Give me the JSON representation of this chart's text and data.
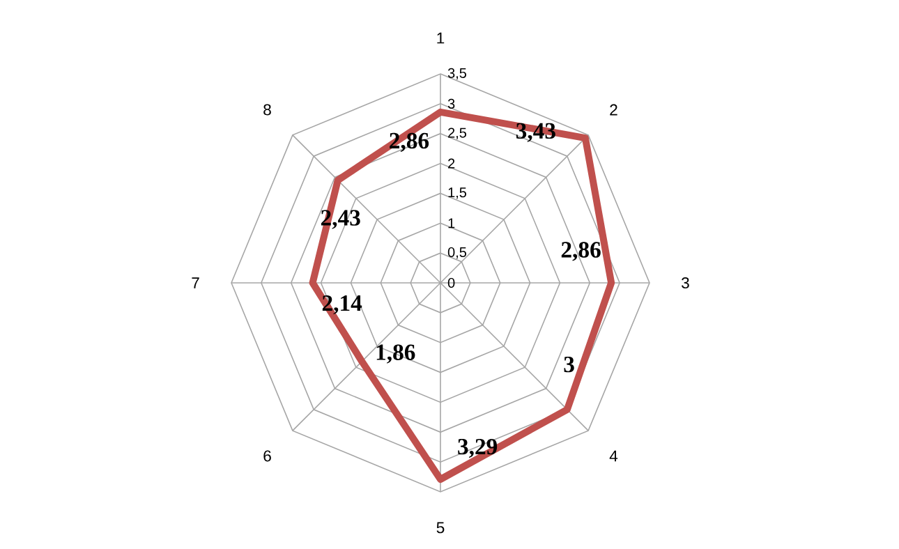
{
  "chart_data": {
    "type": "radar",
    "categories": [
      "1",
      "2",
      "3",
      "4",
      "5",
      "6",
      "7",
      "8"
    ],
    "series": [
      {
        "color": "#c0504d",
        "values": [
          2.86,
          3.43,
          2.86,
          3,
          3.29,
          1.86,
          2.14,
          2.43
        ],
        "value_labels": [
          "2,86",
          "3,43",
          "2,86",
          "3",
          "3,29",
          "1,86",
          "2,14",
          "2,43"
        ]
      }
    ],
    "ylim": [
      0,
      3.5
    ],
    "yticks": [
      0,
      {
        "value": 0.5,
        "label": "0,5"
      },
      1,
      {
        "value": 1.5,
        "label": "1,5"
      },
      2,
      {
        "value": 2.5,
        "label": "2,5"
      },
      3,
      {
        "value": 3.5,
        "label": "3,5"
      }
    ],
    "marker": "none"
  }
}
